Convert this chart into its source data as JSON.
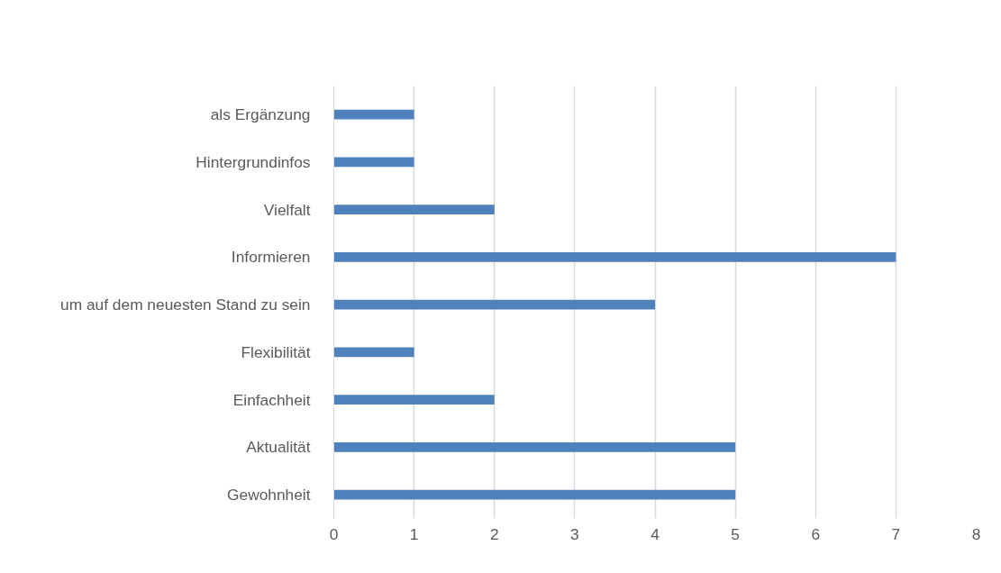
{
  "chart_data": {
    "type": "bar",
    "orientation": "horizontal",
    "categories": [
      "als Ergänzung",
      "Hintergrundinfos",
      "Vielfalt",
      "Informieren",
      "um auf dem neuesten Stand zu sein",
      "Flexibilität",
      "Einfachheit",
      "Aktualität",
      "Gewohnheit"
    ],
    "values": [
      1,
      1,
      2,
      7,
      4,
      1,
      2,
      5,
      5
    ],
    "color": "#4f81bd",
    "xlim": [
      0,
      8
    ],
    "xticks": [
      0,
      1,
      2,
      3,
      4,
      5,
      6,
      7,
      8
    ],
    "grid": "x"
  }
}
